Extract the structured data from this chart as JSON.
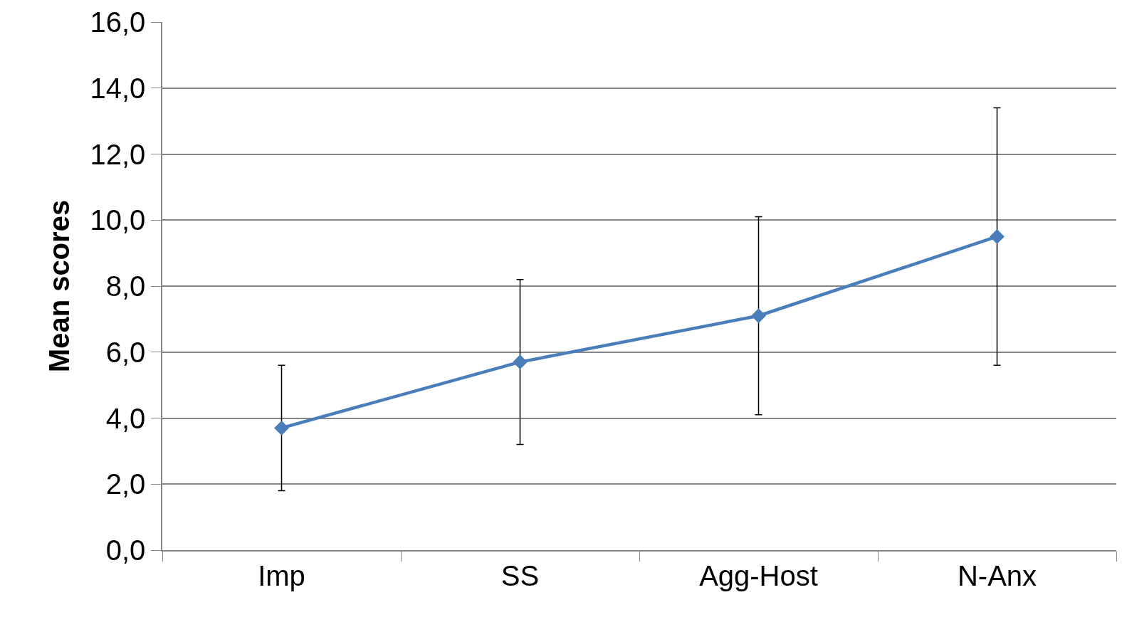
{
  "chart_data": {
    "type": "line",
    "ylabel": "Mean scores",
    "categories": [
      "Imp",
      "SS",
      "Agg-Host",
      "N-Anx"
    ],
    "series": [
      {
        "color": "#4a7ebb",
        "values": [
          3.7,
          5.7,
          7.1,
          9.5
        ],
        "errors": [
          1.9,
          2.5,
          3.0,
          3.9
        ]
      }
    ],
    "ylim": [
      0,
      16
    ],
    "yticks": [
      {
        "value": 0,
        "label": "0,0"
      },
      {
        "value": 2,
        "label": "2,0"
      },
      {
        "value": 4,
        "label": "4,0"
      },
      {
        "value": 6,
        "label": "6,0"
      },
      {
        "value": 8,
        "label": "8,0"
      },
      {
        "value": 10,
        "label": "10,0"
      },
      {
        "value": 12,
        "label": "12,0"
      },
      {
        "value": 14,
        "label": "14,0"
      },
      {
        "value": 16,
        "label": "16,0"
      }
    ],
    "grid": "y",
    "marker": "diamond",
    "line_style": "solid",
    "legend": false
  }
}
